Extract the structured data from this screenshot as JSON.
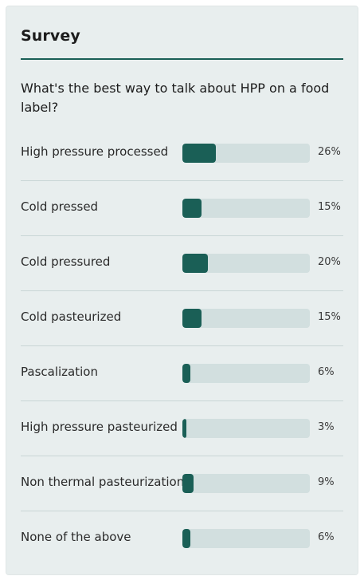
{
  "survey": {
    "title": "Survey",
    "question": "What's the best way to talk about HPP on a food label?",
    "options": [
      {
        "label": "High pressure processed",
        "percent_text": "26%",
        "percent": 26
      },
      {
        "label": "Cold pressed",
        "percent_text": "15%",
        "percent": 15
      },
      {
        "label": "Cold pressured",
        "percent_text": "20%",
        "percent": 20
      },
      {
        "label": "Cold pasteurized",
        "percent_text": "15%",
        "percent": 15
      },
      {
        "label": "Pascalization",
        "percent_text": "6%",
        "percent": 6
      },
      {
        "label": "High pressure pasteurized",
        "percent_text": "3%",
        "percent": 3
      },
      {
        "label": "Non thermal pasteurization",
        "percent_text": "9%",
        "percent": 9
      },
      {
        "label": "None of the above",
        "percent_text": "6%",
        "percent": 6
      }
    ]
  },
  "colors": {
    "accent": "#1a5f56",
    "track": "#d2dfdf",
    "card_background": "#e8eeee"
  }
}
